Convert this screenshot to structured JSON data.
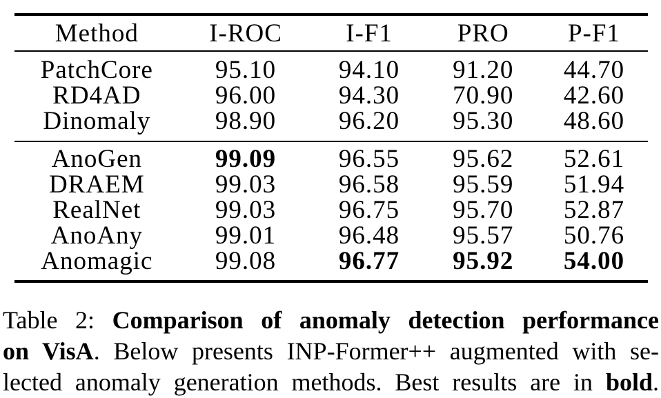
{
  "page": {
    "background_color": "#ffffff",
    "text_color": "#000000"
  },
  "table": {
    "columns": [
      "Method",
      "I-ROC",
      "I-F1",
      "PRO",
      "P-F1"
    ],
    "groups": [
      {
        "name": "baseline-methods",
        "rows": [
          {
            "method": "PatchCore",
            "values": [
              {
                "text": "95.10",
                "bold": false
              },
              {
                "text": "94.10",
                "bold": false
              },
              {
                "text": "91.20",
                "bold": false
              },
              {
                "text": "44.70",
                "bold": false
              }
            ]
          },
          {
            "method": "RD4AD",
            "values": [
              {
                "text": "96.00",
                "bold": false
              },
              {
                "text": "94.30",
                "bold": false
              },
              {
                "text": "70.90",
                "bold": false
              },
              {
                "text": "42.60",
                "bold": false
              }
            ]
          },
          {
            "method": "Dinomaly",
            "values": [
              {
                "text": "98.90",
                "bold": false
              },
              {
                "text": "96.20",
                "bold": false
              },
              {
                "text": "95.30",
                "bold": false
              },
              {
                "text": "48.60",
                "bold": false
              }
            ]
          }
        ]
      },
      {
        "name": "augmented-methods",
        "rows": [
          {
            "method": "AnoGen",
            "values": [
              {
                "text": "99.09",
                "bold": true
              },
              {
                "text": "96.55",
                "bold": false
              },
              {
                "text": "95.62",
                "bold": false
              },
              {
                "text": "52.61",
                "bold": false
              }
            ]
          },
          {
            "method": "DRAEM",
            "values": [
              {
                "text": "99.03",
                "bold": false
              },
              {
                "text": "96.58",
                "bold": false
              },
              {
                "text": "95.59",
                "bold": false
              },
              {
                "text": "51.94",
                "bold": false
              }
            ]
          },
          {
            "method": "RealNet",
            "values": [
              {
                "text": "99.03",
                "bold": false
              },
              {
                "text": "96.75",
                "bold": false
              },
              {
                "text": "95.70",
                "bold": false
              },
              {
                "text": "52.87",
                "bold": false
              }
            ]
          },
          {
            "method": "AnoAny",
            "values": [
              {
                "text": "99.01",
                "bold": false
              },
              {
                "text": "96.48",
                "bold": false
              },
              {
                "text": "95.57",
                "bold": false
              },
              {
                "text": "50.76",
                "bold": false
              }
            ]
          },
          {
            "method": "Anomagic",
            "values": [
              {
                "text": "99.08",
                "bold": false
              },
              {
                "text": "96.77",
                "bold": true
              },
              {
                "text": "95.92",
                "bold": true
              },
              {
                "text": "54.00",
                "bold": true
              }
            ]
          }
        ]
      }
    ]
  },
  "caption": {
    "lines": [
      {
        "segments": [
          {
            "text": "Table 2: ",
            "bold": false
          },
          {
            "text": "Comparison of anomaly detection performance",
            "bold": true
          }
        ]
      },
      {
        "segments": [
          {
            "text": "on VisA",
            "bold": true
          },
          {
            "text": ". Below presents INP-Former++ augmented with se-",
            "bold": false
          }
        ]
      },
      {
        "segments": [
          {
            "text": "lected anomaly generation methods. Best results are in ",
            "bold": false
          },
          {
            "text": "bold",
            "bold": true
          },
          {
            "text": ".",
            "bold": false
          }
        ]
      }
    ]
  }
}
